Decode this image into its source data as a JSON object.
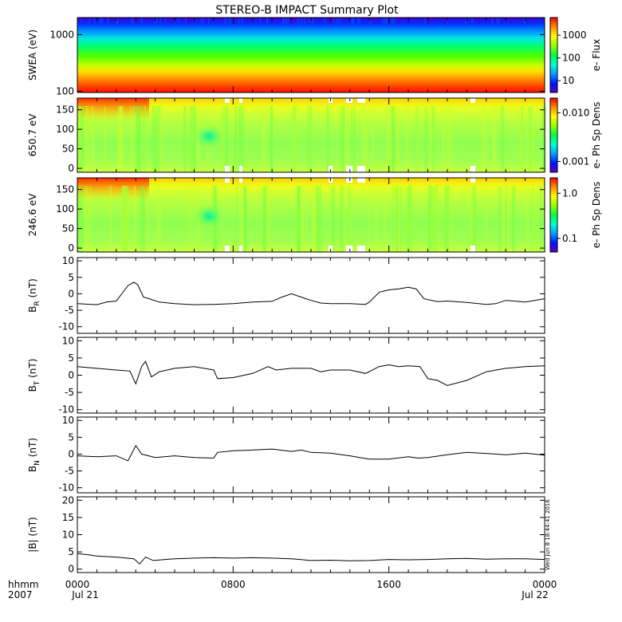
{
  "title": "STEREO-B IMPACT Summary Plot",
  "stamp": "Wed Jun  8 18:44:41 2016",
  "time_axis": {
    "row1": {
      "label": "hhmm",
      "ticks": [
        "0000",
        "0800",
        "1600",
        "0000"
      ]
    },
    "row2": {
      "label": "2007",
      "dates": [
        "Jul 21",
        "Jul 22"
      ]
    },
    "range_hours": [
      0,
      24
    ],
    "major_ticks_hours": [
      0,
      8,
      16,
      24
    ]
  },
  "chart_data": [
    {
      "type": "heatmap",
      "ylabel": "SWEA (eV)",
      "yscale": "log",
      "ylim": [
        95,
        2000
      ],
      "yticks": [
        "100",
        "1000"
      ],
      "ytick_values": [
        100,
        1000
      ],
      "colorbar": {
        "label": "e- Flux",
        "scale": "log",
        "ticks": [
          "10",
          "100",
          "1000"
        ],
        "tick_values": [
          10,
          100,
          1000
        ],
        "range": [
          3,
          6000
        ]
      },
      "description_values": {
        "energy_flux_high_at_low_energy": true
      }
    },
    {
      "type": "heatmap",
      "ylabel": "650.7 eV",
      "ylim": [
        -10,
        180
      ],
      "yticks": [
        "0",
        "50",
        "100",
        "150"
      ],
      "ytick_values": [
        0,
        50,
        100,
        150
      ],
      "colorbar": {
        "label": "e- Ph Sp Dens",
        "scale": "log",
        "ticks": [
          "0.001",
          "0.010"
        ],
        "tick_values": [
          0.001,
          0.01
        ],
        "range": [
          0.0006,
          0.02
        ]
      }
    },
    {
      "type": "heatmap",
      "ylabel": "246.6 eV",
      "ylim": [
        -10,
        180
      ],
      "yticks": [
        "0",
        "50",
        "100",
        "150"
      ],
      "ytick_values": [
        0,
        50,
        100,
        150
      ],
      "colorbar": {
        "label": "e- Ph Sp Dens",
        "scale": "log",
        "ticks": [
          "0.1",
          "1.0"
        ],
        "tick_values": [
          0.1,
          1.0
        ],
        "range": [
          0.05,
          2.2
        ]
      }
    },
    {
      "type": "line",
      "ylabel": "B",
      "ylabel_sub": "R",
      "ylabel_unit": "(nT)",
      "ylim": [
        -12,
        11
      ],
      "yticks": [
        "-10",
        "-5",
        "0",
        "5",
        "10"
      ],
      "ytick_values": [
        -10,
        -5,
        0,
        5,
        10
      ],
      "x": [
        0,
        1,
        1.5,
        2,
        2.6,
        2.9,
        3.1,
        3.4,
        3.7,
        4.2,
        5,
        6,
        7,
        8,
        9,
        10,
        10.5,
        11,
        11.5,
        12,
        12.5,
        13,
        14,
        14.8,
        15,
        15.5,
        16,
        16.5,
        17,
        17.4,
        17.8,
        18.5,
        19,
        20,
        21,
        21.5,
        22,
        23,
        24
      ],
      "y": [
        -3,
        -3.3,
        -2.5,
        -2.2,
        2.5,
        3.5,
        2.8,
        -1,
        -1.5,
        -2.5,
        -3,
        -3.3,
        -3.2,
        -3,
        -2.5,
        -2.3,
        -1,
        0,
        -1,
        -2,
        -2.8,
        -3,
        -3,
        -3.2,
        -2.5,
        0.5,
        1.2,
        1.5,
        2,
        1.5,
        -1.5,
        -2.4,
        -2.2,
        -2.6,
        -3.2,
        -3,
        -2,
        -2.5,
        -1.5
      ]
    },
    {
      "type": "line",
      "ylabel": "B",
      "ylabel_sub": "T",
      "ylabel_unit": "(nT)",
      "ylim": [
        -11,
        11
      ],
      "yticks": [
        "-10",
        "-5",
        "0",
        "5",
        "10"
      ],
      "ytick_values": [
        -10,
        -5,
        0,
        5,
        10
      ],
      "x": [
        0,
        1,
        2,
        2.7,
        3.0,
        3.3,
        3.5,
        3.8,
        4.2,
        5,
        6,
        7,
        7.2,
        8,
        9,
        9.8,
        10.2,
        11,
        12,
        12.5,
        13,
        14,
        14.8,
        15.5,
        16,
        16.5,
        17,
        17.6,
        18,
        18.5,
        19,
        20,
        21,
        22,
        23,
        24
      ],
      "y": [
        2.5,
        2,
        1.5,
        1.2,
        -2.5,
        2.5,
        4,
        -0.5,
        1,
        2,
        2.5,
        1.5,
        -1,
        -0.7,
        0.5,
        2.5,
        1.5,
        2,
        2,
        1,
        1.5,
        1.5,
        0.5,
        2.5,
        3,
        2.5,
        2.7,
        2.5,
        -1,
        -1.5,
        -3,
        -1.5,
        1,
        2,
        2.5,
        2.7
      ]
    },
    {
      "type": "line",
      "ylabel": "B",
      "ylabel_sub": "N",
      "ylabel_unit": "(nT)",
      "ylim": [
        -11.5,
        11
      ],
      "yticks": [
        "-10",
        "-5",
        "0",
        "5",
        "10"
      ],
      "ytick_values": [
        -10,
        -5,
        0,
        5,
        10
      ],
      "x": [
        0,
        1,
        2,
        2.6,
        3,
        3.3,
        4,
        5,
        6,
        7,
        7.2,
        8,
        9,
        10,
        11,
        11.5,
        12,
        13,
        14,
        14.5,
        15,
        16,
        17,
        17.5,
        18,
        19,
        20,
        21,
        22,
        23,
        24
      ],
      "y": [
        -0.5,
        -0.8,
        -0.5,
        -2,
        2.5,
        0,
        -1,
        -0.5,
        -1,
        -1.2,
        0.5,
        1,
        1.2,
        1.5,
        0.8,
        1.2,
        0.5,
        0.3,
        -0.5,
        -1,
        -1.5,
        -1.5,
        -0.8,
        -1.2,
        -1,
        -0.2,
        0.5,
        0.2,
        -0.2,
        0.3,
        -0.3
      ]
    },
    {
      "type": "line",
      "ylabel": "|B| (nT)",
      "ylim": [
        -1,
        21
      ],
      "yticks": [
        "0",
        "5",
        "10",
        "15",
        "20"
      ],
      "ytick_values": [
        0,
        5,
        10,
        15,
        20
      ],
      "x": [
        0,
        0.5,
        1,
        2,
        2.9,
        3.2,
        3.5,
        3.9,
        4.5,
        5,
        6,
        7,
        8,
        9,
        10,
        11,
        12,
        13,
        14,
        15,
        16,
        17,
        18,
        19,
        20,
        21,
        22,
        23,
        24
      ],
      "y": [
        4.5,
        4.2,
        3.8,
        3.5,
        3,
        1.5,
        3.5,
        2.5,
        2.8,
        3,
        3.2,
        3.3,
        3.2,
        3.3,
        3.2,
        3,
        2.5,
        2.6,
        2.4,
        2.5,
        2.8,
        2.7,
        2.8,
        3.0,
        3.1,
        2.9,
        3.0,
        3.0,
        2.8
      ]
    }
  ]
}
